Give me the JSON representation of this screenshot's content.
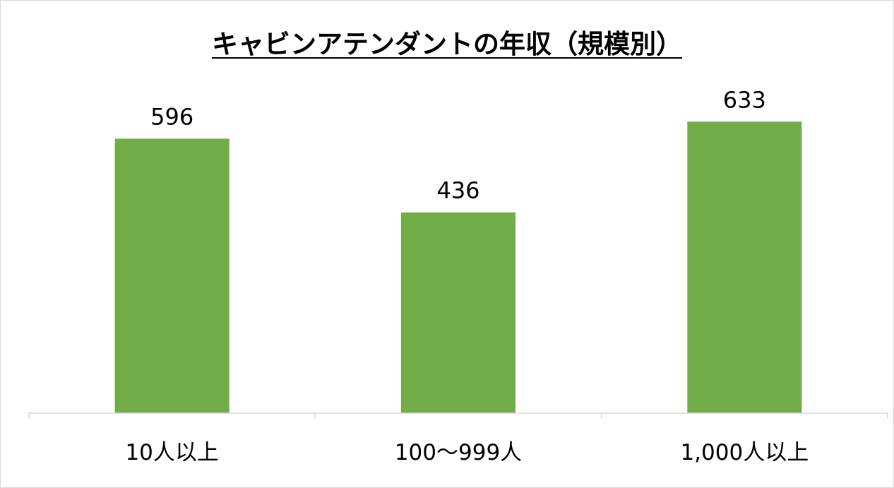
{
  "chart_data": {
    "type": "bar",
    "title": "キャビンアテンダントの年収（規模別）",
    "categories": [
      "10人以上",
      "100～999人",
      "1,000人以上"
    ],
    "values": [
      596,
      436,
      633
    ],
    "ylim": [
      0,
      700
    ],
    "bar_color": "#70ad47",
    "axis_color": "#d9d9d9",
    "grid": false,
    "legend": "none"
  }
}
